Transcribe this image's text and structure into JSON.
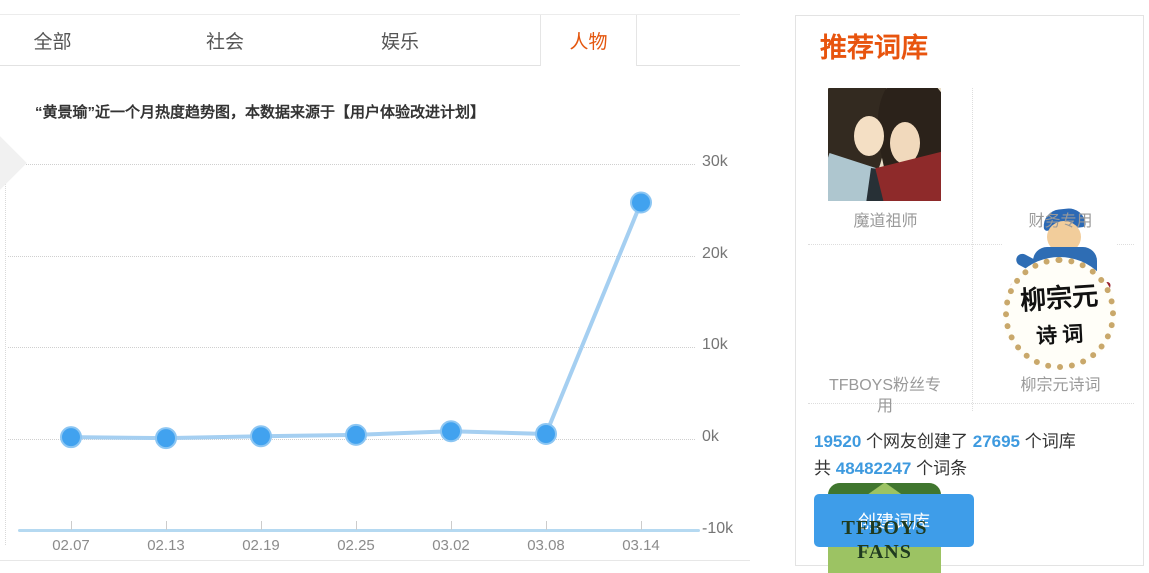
{
  "tabs": [
    {
      "label": "全部",
      "active": false
    },
    {
      "label": "社会",
      "active": false
    },
    {
      "label": "娱乐",
      "active": false
    },
    {
      "label": "人物",
      "active": true
    }
  ],
  "chart": {
    "title": "“黄景瑜”近一个月热度趋势图，本数据来源于【用户体验改进计划】"
  },
  "chart_data": {
    "type": "line",
    "title": "“黄景瑜”近一个月热度趋势图",
    "x": [
      "02.07",
      "02.13",
      "02.19",
      "02.25",
      "03.02",
      "03.08",
      "03.14"
    ],
    "values_k": [
      0.2,
      0.1,
      0.3,
      0.45,
      0.85,
      0.55,
      25.8
    ],
    "yticks": [
      {
        "value": 30,
        "label": "30k"
      },
      {
        "value": 20,
        "label": "20k"
      },
      {
        "value": 10,
        "label": "10k"
      },
      {
        "value": 0,
        "label": "0k"
      },
      {
        "value": -10,
        "label": "-10k"
      }
    ],
    "ylim": [
      -10,
      30
    ],
    "grid": "dotted-horizontal",
    "legend": "none"
  },
  "icons": {
    "prev_arrow": "❮"
  },
  "sidebar": {
    "title": "推荐词库",
    "items": [
      {
        "label": "魔道祖师",
        "icon": "mdzs-artwork"
      },
      {
        "label": "财务专用",
        "icon": "finance-artwork"
      },
      {
        "label": "TFBOYS粉丝专用",
        "icon": "tfboys-logo",
        "image_text_line1": "TFBOYS",
        "image_text_line2": "FANS"
      },
      {
        "label": "柳宗元诗词",
        "icon": "poetry-seal",
        "image_text_line1": "柳宗元",
        "image_text_line2": "诗 词"
      }
    ],
    "stats": {
      "users_count": "19520",
      "users_text": " 个网友创建了 ",
      "libs_count": "27695",
      "libs_text": " 个词库",
      "total_prefix": "共 ",
      "entries_count": "48482247",
      "entries_text": " 个词条"
    },
    "button_label": "创建词库"
  },
  "colors": {
    "accent_orange": "#E4570F",
    "header_orange": "#E8540E",
    "chart_line": "#A5CFF1",
    "chart_point_fill": "#41A2EF",
    "chart_point_ring": "#8CC6F3",
    "axis_blue": "#B5D9F1",
    "stats_blue": "#3E9ADF",
    "button_blue": "#3E9DE9",
    "tab_text": "#555555",
    "gridline": "#CFCFCF"
  }
}
